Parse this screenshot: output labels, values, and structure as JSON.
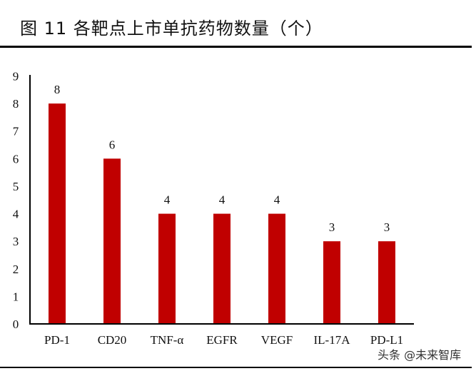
{
  "header": {
    "title": "图  11 各靶点上市单抗药物数量（个）"
  },
  "watermark": "头条 @未来智库",
  "colors": {
    "bar": "#C00000",
    "axis": "#000000",
    "rule": "#000000"
  },
  "chart_data": {
    "type": "bar",
    "title": "图 11 各靶点上市单抗药物数量（个）",
    "xlabel": "",
    "ylabel": "",
    "categories": [
      "PD-1",
      "CD20",
      "TNF-α",
      "EGFR",
      "VEGF",
      "IL-17A",
      "PD-L1"
    ],
    "values": [
      8,
      6,
      4,
      4,
      4,
      3,
      3
    ],
    "data_labels": [
      "8",
      "6",
      "4",
      "4",
      "4",
      "3",
      "3"
    ],
    "ylim": [
      0,
      9
    ],
    "yticks": [
      0,
      1,
      2,
      3,
      4,
      5,
      6,
      7,
      8,
      9
    ],
    "grid": false,
    "legend": null,
    "bar_color": "#C00000"
  }
}
